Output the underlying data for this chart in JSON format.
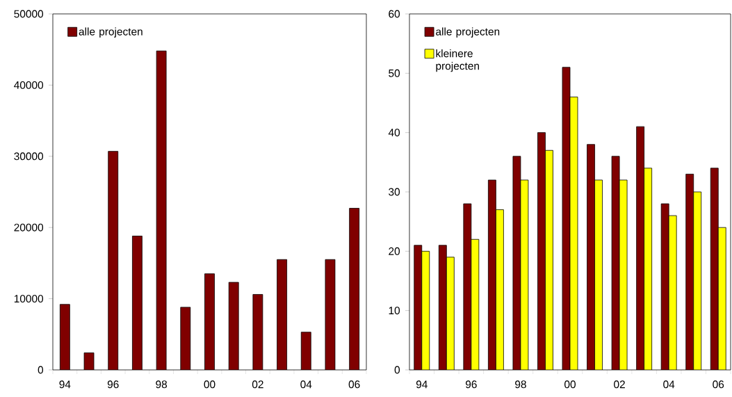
{
  "chart_data": [
    {
      "type": "bar",
      "categories": [
        "94",
        null,
        "96",
        null,
        "98",
        null,
        "00",
        null,
        "02",
        null,
        "04",
        null,
        "06"
      ],
      "series": [
        {
          "name": "alle projecten",
          "color": "#800000",
          "values": [
            9200,
            2400,
            30700,
            18800,
            44800,
            8800,
            13500,
            12300,
            10600,
            15500,
            5300,
            15500,
            22700
          ]
        }
      ],
      "ylim": [
        0,
        50000
      ],
      "yticks": [
        0,
        10000,
        20000,
        30000,
        40000,
        50000
      ],
      "legend": "top left"
    },
    {
      "type": "bar",
      "categories": [
        "94",
        null,
        "96",
        null,
        "98",
        null,
        "00",
        null,
        "02",
        null,
        "04",
        null,
        "06"
      ],
      "series": [
        {
          "name": "alle projecten",
          "color": "#800000",
          "values": [
            21,
            21,
            28,
            32,
            36,
            40,
            51,
            38,
            36,
            41,
            28,
            33,
            34
          ]
        },
        {
          "name": "kleinere projecten",
          "color": "#ffff00",
          "values": [
            20,
            19,
            22,
            27,
            32,
            37,
            46,
            32,
            32,
            34,
            26,
            30,
            24
          ]
        }
      ],
      "ylim": [
        0,
        60
      ],
      "yticks": [
        0,
        10,
        20,
        30,
        40,
        50,
        60
      ],
      "legend": "top left"
    }
  ]
}
